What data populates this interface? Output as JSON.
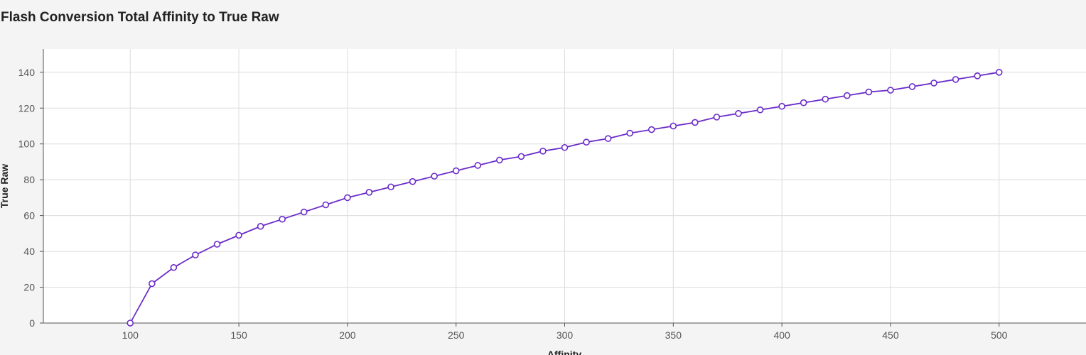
{
  "page": {
    "title": "Flash Conversion Total Affinity to True Raw"
  },
  "chart_data": {
    "type": "line",
    "title": "Flash Conversion Total Affinity to True Raw",
    "xlabel": "Affinity",
    "ylabel": "True Raw",
    "xlim": [
      60,
      540
    ],
    "ylim": [
      0,
      153
    ],
    "xticks": [
      100,
      150,
      200,
      250,
      300,
      350,
      400,
      450,
      500
    ],
    "yticks": [
      0,
      20,
      40,
      60,
      80,
      100,
      120,
      140
    ],
    "grid": true,
    "legend": "none",
    "colors": {
      "line": "#6a2bc9",
      "marker_fill": "#ffffff",
      "grid": "#dcdcdc",
      "axis": "#555555",
      "plot_background": "#ffffff",
      "page_background": "#f4f4f4"
    },
    "series": [
      {
        "x": [
          100,
          110,
          120,
          130,
          140,
          150,
          160,
          170,
          180,
          190,
          200,
          210,
          220,
          230,
          240,
          250,
          260,
          270,
          280,
          290,
          300,
          310,
          320,
          330,
          340,
          350,
          360,
          370,
          380,
          390,
          400,
          410,
          420,
          430,
          440,
          450,
          460,
          470,
          480,
          490,
          500
        ],
        "y": [
          0,
          22,
          31,
          38,
          44,
          49,
          54,
          58,
          62,
          66,
          70,
          73,
          76,
          79,
          82,
          85,
          88,
          91,
          93,
          96,
          98,
          101,
          103,
          106,
          108,
          110,
          112,
          115,
          117,
          119,
          121,
          123,
          125,
          127,
          129,
          130,
          132,
          134,
          136,
          138,
          140
        ]
      }
    ]
  }
}
